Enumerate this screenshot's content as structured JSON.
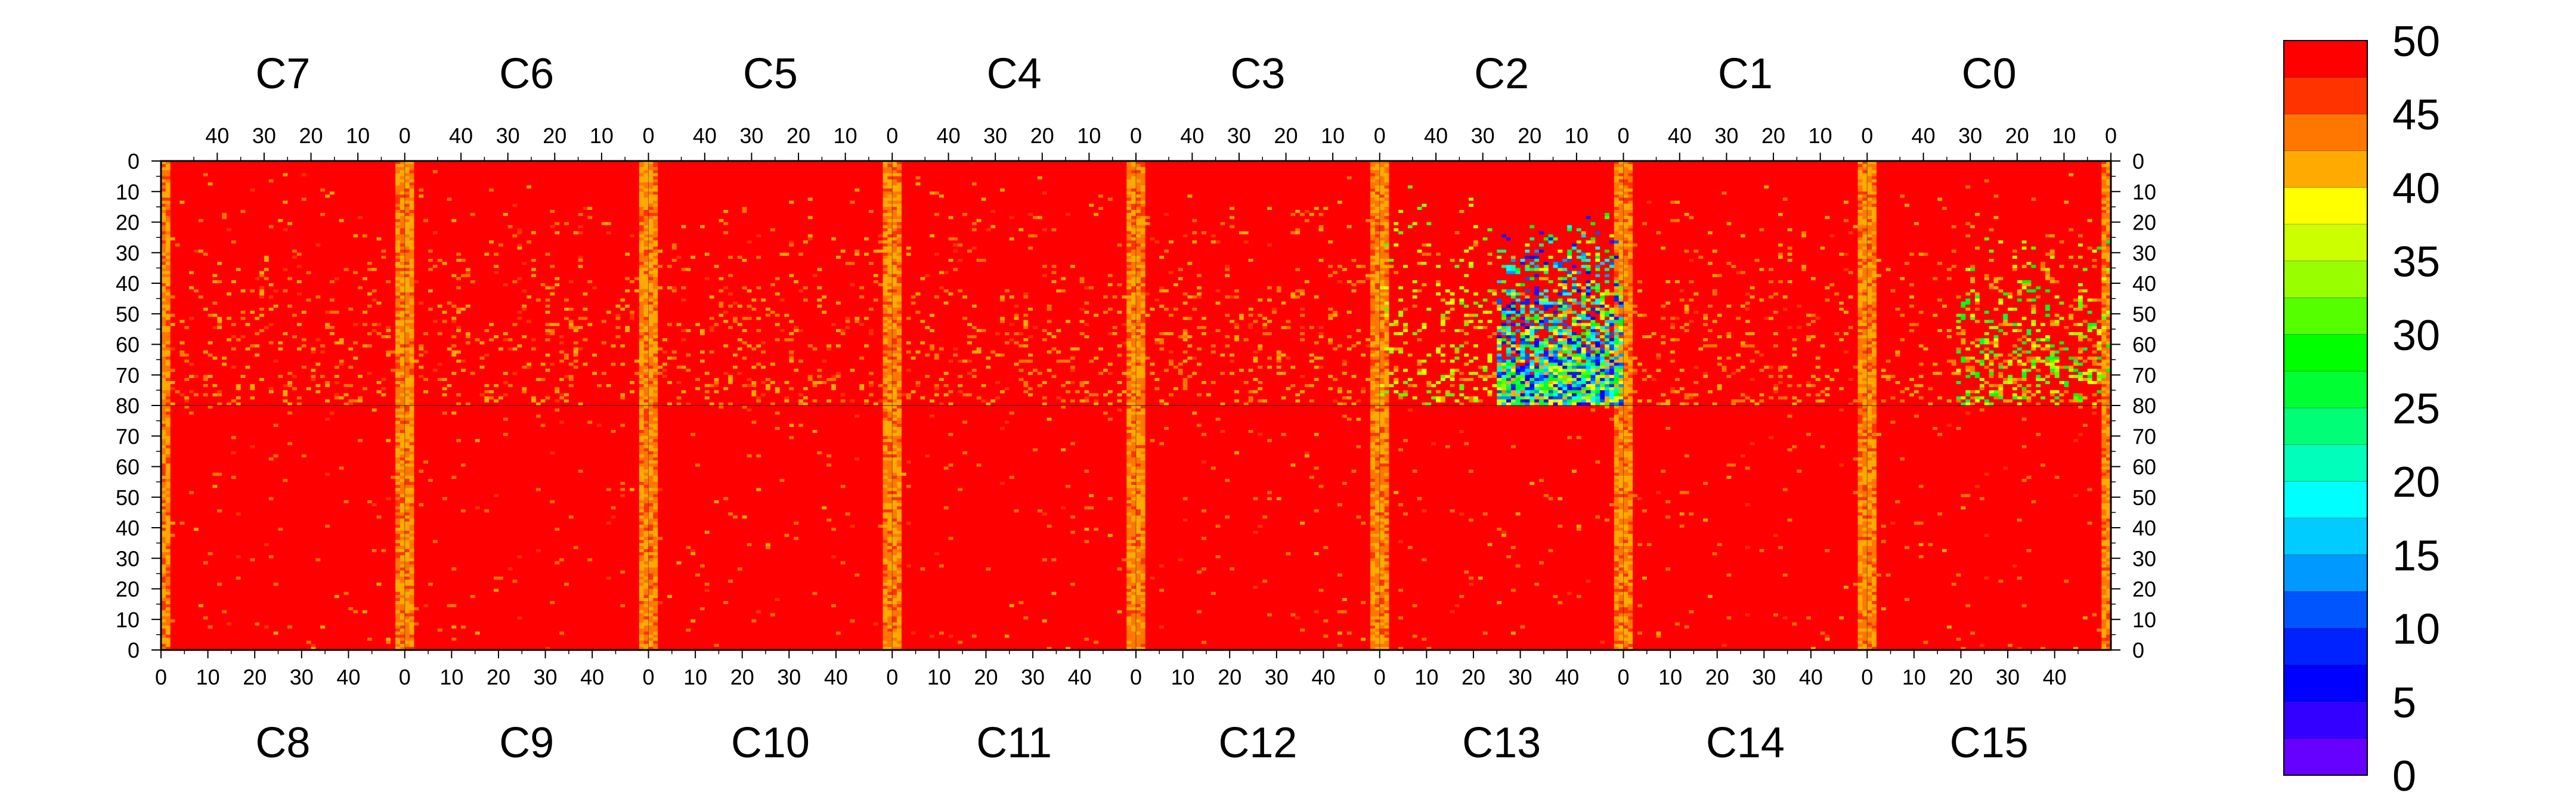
{
  "chart_data": {
    "type": "heatmap",
    "title": "",
    "top_chips": [
      "C7",
      "C6",
      "C5",
      "C4",
      "C3",
      "C2",
      "C1",
      "C0"
    ],
    "bottom_chips": [
      "C8",
      "C9",
      "C10",
      "C11",
      "C12",
      "C13",
      "C14",
      "C15"
    ],
    "columns_per_chip": 52,
    "top_half_rows": 80,
    "bottom_half_rows": 80,
    "top_axis_ticks": [
      "40",
      "30",
      "20",
      "10",
      "0"
    ],
    "bottom_axis_ticks": [
      "0",
      "10",
      "20",
      "30",
      "40"
    ],
    "y_ticks_top": [
      "0",
      "10",
      "20",
      "30",
      "40",
      "50",
      "60",
      "70",
      "80"
    ],
    "y_ticks_bottom": [
      "70",
      "60",
      "50",
      "40",
      "30",
      "20",
      "10",
      "0"
    ],
    "z_range": [
      0,
      50
    ],
    "colorbar_ticks": [
      "50",
      "45",
      "40",
      "35",
      "30",
      "25",
      "20",
      "15",
      "10",
      "5",
      "0"
    ],
    "colorbar_colors": [
      "#ff0000",
      "#ff3300",
      "#ff7700",
      "#ffaa00",
      "#ffff00",
      "#ccff00",
      "#99ff00",
      "#55ff00",
      "#00ff00",
      "#00ff33",
      "#00ff77",
      "#00ffbb",
      "#00ffff",
      "#00ccff",
      "#0099ff",
      "#0055ff",
      "#0022ff",
      "#0000ff",
      "#3300ff",
      "#6600ff"
    ],
    "dominant_value": 49,
    "notes_regions": {
      "hot_edge_columns": "columns near 0 and 51 of each chip show values about 40-45",
      "low_region": "chip C2 rows 30-80 columns 0-25 show values down to about 5",
      "mid_region": "chip C0 rows 40-80 show values about 30-45"
    }
  }
}
